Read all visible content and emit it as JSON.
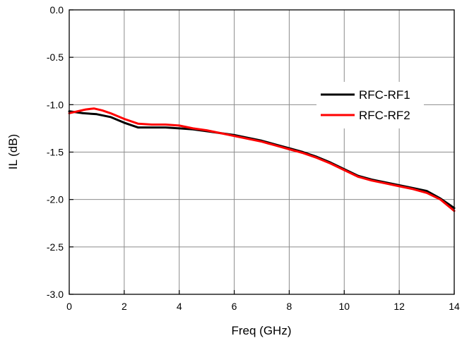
{
  "chart_data": {
    "type": "line",
    "title": "",
    "xlabel": "Freq (GHz)",
    "ylabel": "IL (dB)",
    "xlim": [
      0,
      14
    ],
    "ylim": [
      -3.0,
      0.0
    ],
    "x_ticks": [
      "0",
      "2",
      "4",
      "6",
      "8",
      "10",
      "12",
      "14"
    ],
    "y_ticks": [
      "0.0",
      "-0.5",
      "-1.0",
      "-1.5",
      "-2.0",
      "-2.5",
      "-3.0"
    ],
    "grid": true,
    "legend_position": "right",
    "series": [
      {
        "name": "RFC-RF1",
        "color": "#000000",
        "x": [
          0,
          0.5,
          1.0,
          1.5,
          2.0,
          2.5,
          3.0,
          3.5,
          4.0,
          4.5,
          5.0,
          5.5,
          6.0,
          6.5,
          7.0,
          7.5,
          8.0,
          8.5,
          9.0,
          9.5,
          10.0,
          10.5,
          11.0,
          11.5,
          12.0,
          12.5,
          13.0,
          13.5,
          14.0
        ],
        "y": [
          -1.07,
          -1.09,
          -1.1,
          -1.13,
          -1.19,
          -1.24,
          -1.24,
          -1.24,
          -1.25,
          -1.26,
          -1.28,
          -1.3,
          -1.32,
          -1.35,
          -1.38,
          -1.42,
          -1.46,
          -1.5,
          -1.55,
          -1.61,
          -1.68,
          -1.75,
          -1.79,
          -1.82,
          -1.85,
          -1.88,
          -1.91,
          -1.99,
          -2.09
        ]
      },
      {
        "name": "RFC-RF2",
        "color": "#ff0000",
        "x": [
          0,
          0.3,
          0.6,
          0.9,
          1.2,
          1.5,
          2.0,
          2.5,
          3.0,
          3.5,
          4.0,
          4.5,
          5.0,
          5.5,
          6.0,
          6.5,
          7.0,
          7.5,
          8.0,
          8.5,
          9.0,
          9.5,
          10.0,
          10.5,
          11.0,
          11.5,
          12.0,
          12.5,
          13.0,
          13.5,
          14.0
        ],
        "y": [
          -1.09,
          -1.07,
          -1.05,
          -1.04,
          -1.06,
          -1.09,
          -1.15,
          -1.2,
          -1.21,
          -1.21,
          -1.22,
          -1.25,
          -1.27,
          -1.3,
          -1.33,
          -1.36,
          -1.39,
          -1.43,
          -1.47,
          -1.51,
          -1.56,
          -1.62,
          -1.69,
          -1.76,
          -1.8,
          -1.83,
          -1.86,
          -1.89,
          -1.93,
          -2.0,
          -2.12
        ]
      }
    ]
  }
}
